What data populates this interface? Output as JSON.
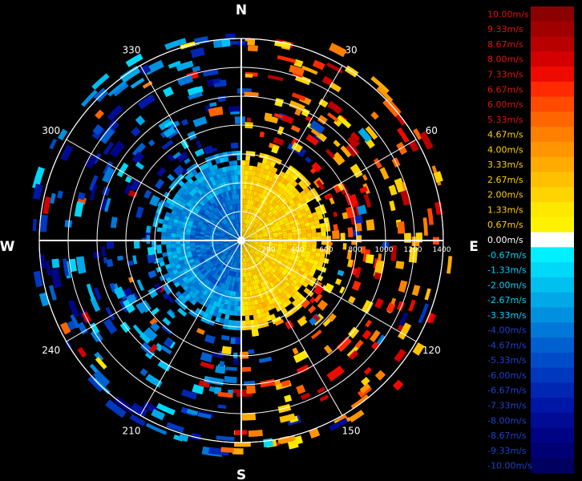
{
  "chart_data": {
    "type": "heatmap",
    "subtype": "polar-ppi-radial-velocity",
    "cardinals": {
      "north": "N",
      "east": "E",
      "south": "S",
      "west": "W"
    },
    "azimuth_labels": [
      {
        "deg": 30,
        "text": "30"
      },
      {
        "deg": 60,
        "text": "60"
      },
      {
        "deg": 120,
        "text": "120"
      },
      {
        "deg": 150,
        "text": "150"
      },
      {
        "deg": 210,
        "text": "210"
      },
      {
        "deg": 240,
        "text": "240"
      },
      {
        "deg": 300,
        "text": "300"
      },
      {
        "deg": 330,
        "text": "330"
      }
    ],
    "range_rings": [
      200,
      400,
      600,
      800,
      1000,
      1200,
      1400
    ],
    "range_labels": [
      {
        "value": 200,
        "text": "200"
      },
      {
        "value": 400,
        "text": "400"
      },
      {
        "value": 600,
        "text": "600"
      },
      {
        "value": 800,
        "text": "800"
      },
      {
        "value": 1000,
        "text": "1000"
      },
      {
        "value": 1200,
        "text": "1200"
      },
      {
        "value": 1400,
        "text": "1400"
      }
    ],
    "max_range": 1400,
    "grid": true,
    "legend_position": "right",
    "colorbar": [
      {
        "label": "10.00m/s",
        "color": "#8b0000"
      },
      {
        "label": "9.33m/s",
        "color": "#a00000"
      },
      {
        "label": "8.67m/s",
        "color": "#b80000"
      },
      {
        "label": "8.00m/s",
        "color": "#d40000"
      },
      {
        "label": "7.33m/s",
        "color": "#ee0a00"
      },
      {
        "label": "6.67m/s",
        "color": "#ff2a00"
      },
      {
        "label": "6.00m/s",
        "color": "#ff4a00"
      },
      {
        "label": "5.33m/s",
        "color": "#ff6600"
      },
      {
        "label": "4.67m/s",
        "color": "#ff8000"
      },
      {
        "label": "4.00m/s",
        "color": "#ff9500"
      },
      {
        "label": "3.33m/s",
        "color": "#ffab00"
      },
      {
        "label": "2.67m/s",
        "color": "#ffc000"
      },
      {
        "label": "2.00m/s",
        "color": "#ffd400"
      },
      {
        "label": "1.33m/s",
        "color": "#ffe800"
      },
      {
        "label": "0.67m/s",
        "color": "#fff200"
      },
      {
        "label": "0.00m/s",
        "color": "#ffffff"
      },
      {
        "label": "-0.67m/s",
        "color": "#00f0ff"
      },
      {
        "label": "-1.33m/s",
        "color": "#00d8f8"
      },
      {
        "label": "-2.00m/s",
        "color": "#00c0f0"
      },
      {
        "label": "-2.67m/s",
        "color": "#00a8e8"
      },
      {
        "label": "-3.33m/s",
        "color": "#0090e0"
      },
      {
        "label": "-4.00m/s",
        "color": "#0078d8"
      },
      {
        "label": "-4.67m/s",
        "color": "#0060d0"
      },
      {
        "label": "-5.33m/s",
        "color": "#004cc8"
      },
      {
        "label": "-6.00m/s",
        "color": "#0038c0"
      },
      {
        "label": "-6.67m/s",
        "color": "#0026b4"
      },
      {
        "label": "-7.33m/s",
        "color": "#0016a4"
      },
      {
        "label": "-8.00m/s",
        "color": "#000c94"
      },
      {
        "label": "-8.67m/s",
        "color": "#000484"
      },
      {
        "label": "-9.33m/s",
        "color": "#000074"
      },
      {
        "label": "-10.00m/s",
        "color": "#000060"
      }
    ],
    "label_colors": {
      "positive": "#e01010",
      "positive_low": "#ffd000",
      "zero": "#ffffff",
      "negative_high": "#00d0ff",
      "negative": "#2040c8"
    },
    "core_echo": {
      "max_range": 600,
      "east_half_velocity": 2.0,
      "west_half_velocity": -3.0
    },
    "colors": {
      "background": "#000000",
      "grid": "#ffffff"
    }
  }
}
